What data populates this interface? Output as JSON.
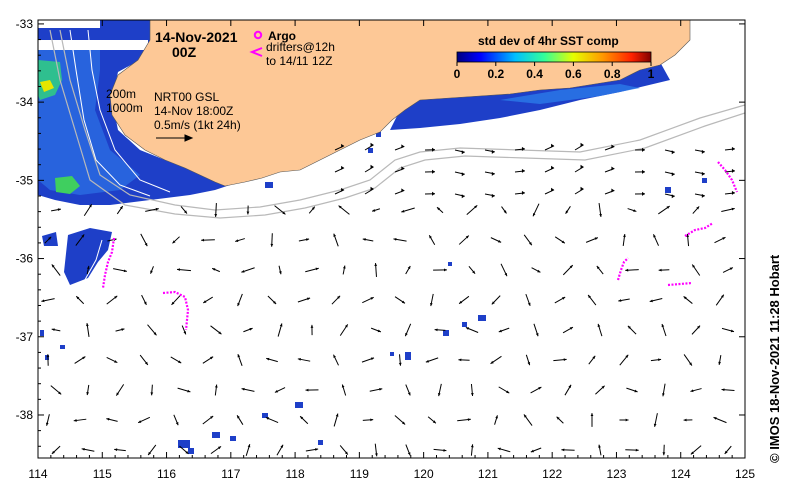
{
  "map": {
    "date_line": "14-Nov-2021",
    "time_line": "00Z",
    "legend": {
      "argo_label": "Argo",
      "drifters_label": "drifters@12h",
      "drifters_sub": "to 14/11 12Z",
      "argo_color": "#ff00ff"
    },
    "contours": {
      "c200": "200m",
      "c1000": "1000m"
    },
    "current": {
      "line1": "NRT00 GSL",
      "line2": "14-Nov 18:00Z",
      "line3": "0.5m/s (1kt 24h)"
    },
    "colorbar": {
      "title": "std dev of 4hr SST comp",
      "ticks": [
        "0",
        "0.2",
        "0.4",
        "0.6",
        "0.8",
        "1"
      ],
      "range": [
        0,
        1
      ]
    },
    "axes": {
      "lon_ticks": [
        "114",
        "115",
        "116",
        "117",
        "118",
        "119",
        "120",
        "121",
        "122",
        "123",
        "124",
        "125"
      ],
      "lat_ticks": [
        "-33",
        "-34",
        "-35",
        "-36",
        "-37",
        "-38"
      ],
      "lon_range": [
        114,
        125
      ],
      "lat_range": [
        -38.55,
        -32.95
      ]
    },
    "credit": "© IMOS 18-Nov-2021 11:28 Hobart",
    "colors": {
      "land": "#fdc896",
      "shelf_line": "#b9b9b9",
      "arrow": "#000000",
      "drifter": "#ff00ff"
    }
  }
}
